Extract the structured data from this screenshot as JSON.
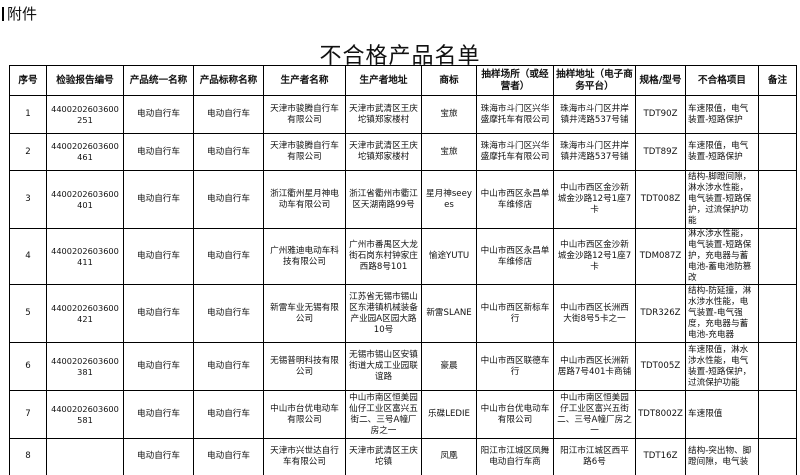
{
  "attachment_label": "附件",
  "title": "不合格产品名单",
  "headers": [
    "序号",
    "检验报告编号",
    "产品统一名称",
    "产品标称名称",
    "生产者名称",
    "生产者地址",
    "商标",
    "抽样场所（或经营者）",
    "抽样地址（电子商务平台）",
    "规格/型号",
    "不合格项目",
    "备注"
  ],
  "rows": [
    {
      "no": "1",
      "report": "4400202603600251",
      "unified": "电动自行车",
      "nominal": "电动自行车",
      "producer": "天津市骏腾自行车有限公司",
      "producer_addr": "天津市武清区王庆坨镇郑家楼村",
      "brand": "宝旅",
      "venue": "珠海市斗门区兴华盛摩托车有限公司",
      "sample_addr": "珠海市斗门区井岸镇井湾路537号铺",
      "model": "TDT90Z",
      "defect": "车速限值，电气装置-短路保护",
      "remark": ""
    },
    {
      "no": "2",
      "report": "4400202603600461",
      "unified": "电动自行车",
      "nominal": "电动自行车",
      "producer": "天津市骏腾自行车有限公司",
      "producer_addr": "天津市武清区王庆坨镇郑家楼村",
      "brand": "宝旅",
      "venue": "珠海市斗门区兴华盛摩托车有限公司",
      "sample_addr": "珠海市斗门区井岸镇井湾路537号铺",
      "model": "TDT89Z",
      "defect": "车速限值，电气装置-短路保护",
      "remark": ""
    },
    {
      "no": "3",
      "report": "4400202603600401",
      "unified": "电动自行车",
      "nominal": "电动自行车",
      "producer": "浙江衢州星月神电动车有限公司",
      "producer_addr": "浙江省衢州市衢江区天湖南路99号",
      "brand": "星月神seeyes",
      "venue": "中山市西区永昌单车维修店",
      "sample_addr": "中山市西区金沙新城金沙路12号1座7卡",
      "model": "TDT008Z",
      "defect": "结构-脚蹬间隙，淋水涉水性能，电气装置-短路保护，过流保护功能",
      "remark": ""
    },
    {
      "no": "4",
      "report": "4400202603600411",
      "unified": "电动自行车",
      "nominal": "电动自行车",
      "producer": "广州雅迪电动车科技有限公司",
      "producer_addr": "广州市番禺区大龙街石岗东村钟家庄西路8号101",
      "brand": "愉途YUTU",
      "venue": "中山市西区永昌单车维修店",
      "sample_addr": "中山市西区金沙新城金沙路12号1座7卡",
      "model": "TDM087Z",
      "defect": "淋水涉水性能，电气装置-短路保护，充电器与蓄电池-蓄电池防篡改",
      "remark": ""
    },
    {
      "no": "5",
      "report": "4400202603600421",
      "unified": "电动自行车",
      "nominal": "电动自行车",
      "producer": "新雷车业无锡有限公司",
      "producer_addr": "江苏省无锡市锡山区东港镇机械装备产业园A区园大路10号",
      "brand": "新雷SLANE",
      "venue": "中山市西区新标车行",
      "sample_addr": "中山市西区长洲西大街8号5卡之一",
      "model": "TDR326Z",
      "defect": "结构-防延撞，淋水涉水性能，电气装置-电气强度，充电器与蓄电池-充电器",
      "remark": ""
    },
    {
      "no": "6",
      "report": "4400202603600381",
      "unified": "电动自行车",
      "nominal": "电动自行车",
      "producer": "无锡普明科技有限公司",
      "producer_addr": "无锡市锡山区安镇街道大成工业园联谊路",
      "brand": "豪晨",
      "venue": "中山市西区联德车行",
      "sample_addr": "中山市西区长洲新居路7号401卡商铺",
      "model": "TDT005Z",
      "defect": "车速限值，淋水涉水性能，电气装置-短路保护，过流保护功能",
      "remark": ""
    },
    {
      "no": "7",
      "report": "4400202603600581",
      "unified": "电动自行车",
      "nominal": "电动自行车",
      "producer": "中山市台优电动车有限公司",
      "producer_addr": "中山市南区恒美园仙仔工业区富兴五街二、三号A幢厂房之一",
      "brand": "乐碟LEDIE",
      "venue": "中山市台优电动车有限公司",
      "sample_addr": "中山市南区恒美园仔工业区富兴五街二、三号A幢厂房之一",
      "model": "TDT8002Z",
      "defect": "车速限值",
      "remark": ""
    },
    {
      "no": "8",
      "report": "",
      "unified": "电动自行车",
      "nominal": "电动自行车",
      "producer": "天津市兴世达自行车有限公司",
      "producer_addr": "天津市武清区王庆坨镇",
      "brand": "凤凰",
      "venue": "阳江市江城区凤舞电动自行车商",
      "sample_addr": "阳江市江城区西平路6号",
      "model": "TDT16Z",
      "defect": "结构-突出物、脚蹬间隙，电气装",
      "remark": ""
    }
  ]
}
